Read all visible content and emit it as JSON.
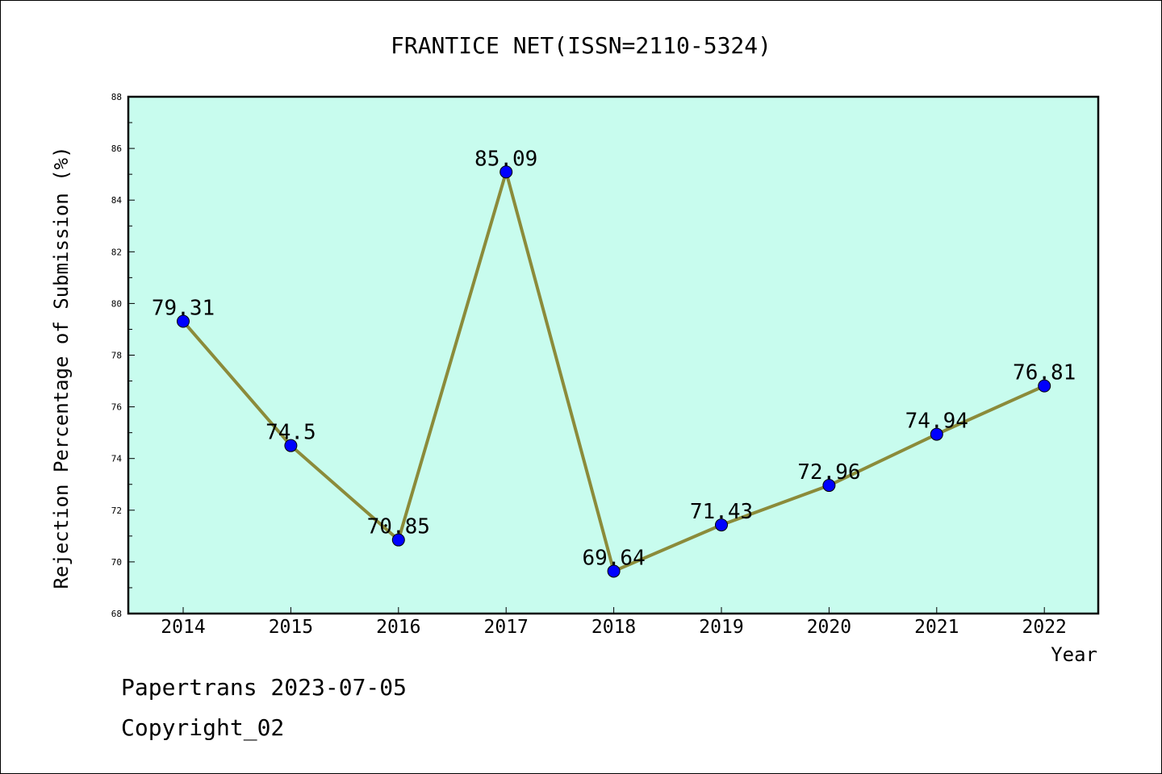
{
  "chart_data": {
    "type": "line",
    "title": "FRANTICE NET(ISSN=2110-5324)",
    "xlabel": "Year",
    "ylabel": "Rejection Percentage of Submission (%)",
    "categories": [
      "2014",
      "2015",
      "2016",
      "2017",
      "2018",
      "2019",
      "2020",
      "2021",
      "2022"
    ],
    "values": [
      79.31,
      74.5,
      70.85,
      85.09,
      69.64,
      71.43,
      72.96,
      74.94,
      76.81
    ],
    "data_labels": [
      "79.31",
      "74.5",
      "70.85",
      "85.09",
      "69.64",
      "71.43",
      "72.96",
      "74.94",
      "76.81"
    ],
    "ylim": [
      68,
      88
    ],
    "yticks": [
      "68",
      "70",
      "72",
      "74",
      "76",
      "78",
      "80",
      "82",
      "84",
      "86",
      "88"
    ],
    "grid": false,
    "legend": "none",
    "colors": {
      "plot_background": "#c8fcee",
      "line": "#8b8b3a",
      "marker": "#0000ff"
    }
  },
  "footer": {
    "line1": "Papertrans 2023-07-05",
    "line2": "Copyright_02"
  }
}
